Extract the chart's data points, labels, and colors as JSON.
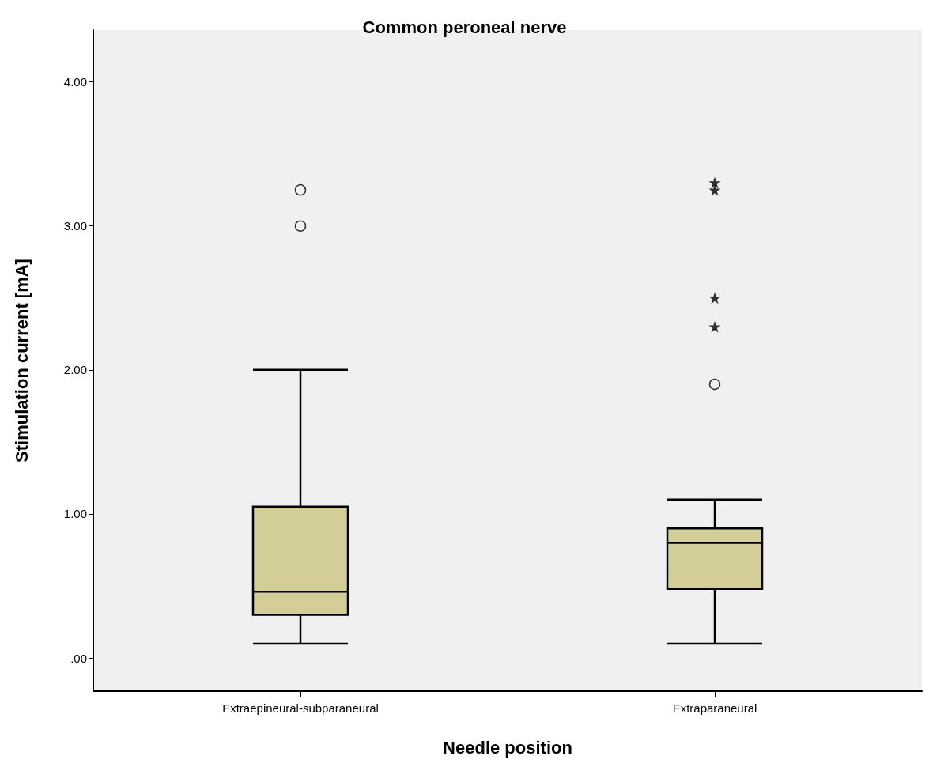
{
  "chart_data": {
    "type": "box",
    "title": "Common peroneal nerve",
    "xlabel": "Needle position",
    "ylabel": "Stimulation current [mA]",
    "categories": [
      "Extraepineural-subparaneural",
      "Extraparaneural"
    ],
    "boxes": [
      {
        "low": 0.1,
        "q1": 0.3,
        "median": 0.46,
        "q3": 1.05,
        "high": 2.0,
        "outliers": [
          3.0,
          3.25
        ]
      },
      {
        "low": 0.1,
        "q1": 0.48,
        "median": 0.8,
        "q3": 0.9,
        "high": 1.1,
        "outliers": [
          1.9,
          2.3,
          2.5,
          3.25,
          3.3
        ]
      }
    ],
    "color": "#d3ce97",
    "ylim": [
      -0.23,
      4.36
    ],
    "yticks": [
      {
        "value": 0,
        "label": ".00"
      },
      {
        "value": 1,
        "label": "1.00"
      },
      {
        "value": 2,
        "label": "2.00"
      },
      {
        "value": 3,
        "label": "3.00"
      },
      {
        "value": 4,
        "label": "4.00"
      }
    ],
    "grid": false
  }
}
